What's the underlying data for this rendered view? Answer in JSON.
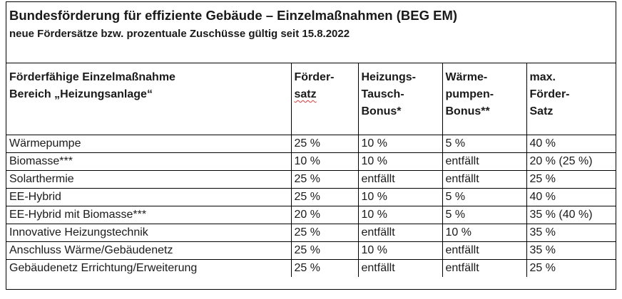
{
  "document": {
    "title": "Bundesförderung für effiziente Gebäude – Einzelmaßnahmen (BEG EM)",
    "subtitle": "neue Fördersätze bzw. prozentuale Zuschüsse gültig seit 15.8.2022"
  },
  "table": {
    "headers": [
      {
        "lines": [
          "Förderfähige Einzelmaßnahme",
          "Bereich „Heizungsanlage“"
        ]
      },
      {
        "lines": [
          "Förder-",
          "satz"
        ]
      },
      {
        "lines": [
          "Heizungs-",
          "Tausch-",
          "Bonus*"
        ]
      },
      {
        "lines": [
          "Wärme-",
          "pumpen-",
          "Bonus**"
        ]
      },
      {
        "lines": [
          "max.",
          "Förder-",
          "Satz"
        ]
      }
    ],
    "rows": [
      [
        "Wärmepumpe",
        "25 %",
        "10 %",
        "5 %",
        "40 %"
      ],
      [
        "Biomasse***",
        "10 %",
        "10 %",
        "entfällt",
        "20 % (25 %)"
      ],
      [
        "Solarthermie",
        "25 %",
        "entfällt",
        "entfällt",
        "25 %"
      ],
      [
        "EE-Hybrid",
        "25 %",
        "10 %",
        "5 %",
        "40 %"
      ],
      [
        "EE-Hybrid mit Biomasse***",
        "20 %",
        "10 %",
        "5 %",
        "35 % (40 %)"
      ],
      [
        "Innovative Heizungstechnik",
        "25 %",
        "entfällt",
        "10 %",
        "35 %"
      ],
      [
        "Anschluss Wärme/Gebäudenetz",
        "25 %",
        "10 %",
        "entfällt",
        "35 %"
      ],
      [
        "Gebäudenetz Errichtung/Erweiterung",
        "25 %",
        "entfällt",
        "entfällt",
        "25 %"
      ]
    ]
  }
}
